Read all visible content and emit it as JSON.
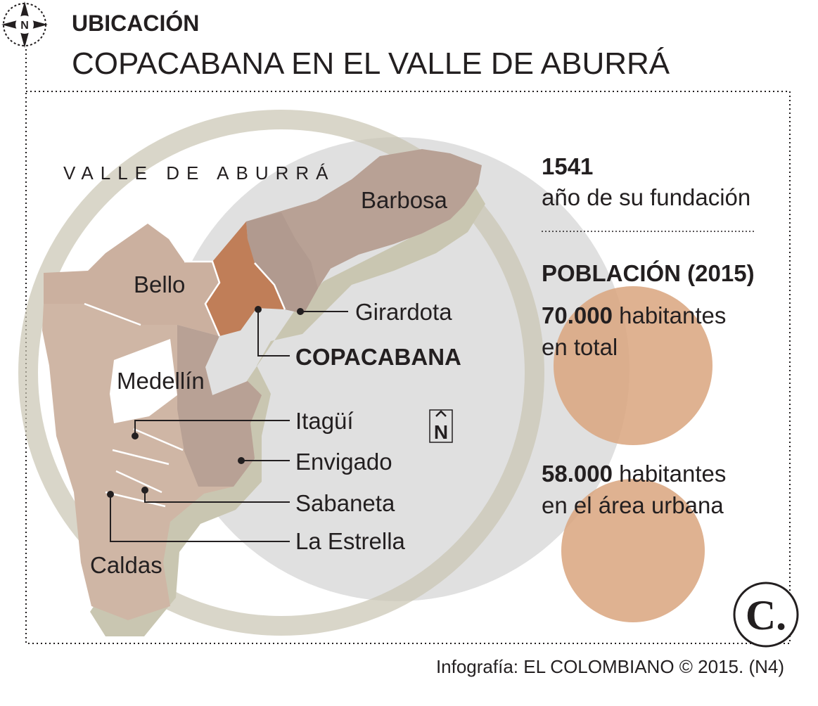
{
  "header": {
    "compass_label": "N",
    "kicker": "UBICACIÓN",
    "title": "COPACABANA EN EL VALLE DE ABURRÁ"
  },
  "map": {
    "region_label": "VALLE DE ABURRÁ",
    "north_label": "N",
    "municipalities": [
      "Barbosa",
      "Bello",
      "Girardota",
      "COPACABANA",
      "Medellín",
      "Itagüí",
      "Envigado",
      "Sabaneta",
      "La Estrella",
      "Caldas"
    ]
  },
  "facts": {
    "founding_year": "1541",
    "founding_caption": "año de su fundación",
    "population_title": "POBLACIÓN (2015)",
    "total": {
      "value": "70.000",
      "unit": "habitantes",
      "caption": "en total"
    },
    "urban": {
      "value": "58.000",
      "unit": "habitantes",
      "caption": "en el área urbana"
    }
  },
  "credit": "Infografía: EL COLOMBIANO © 2015. (N4)",
  "logo": "C."
}
